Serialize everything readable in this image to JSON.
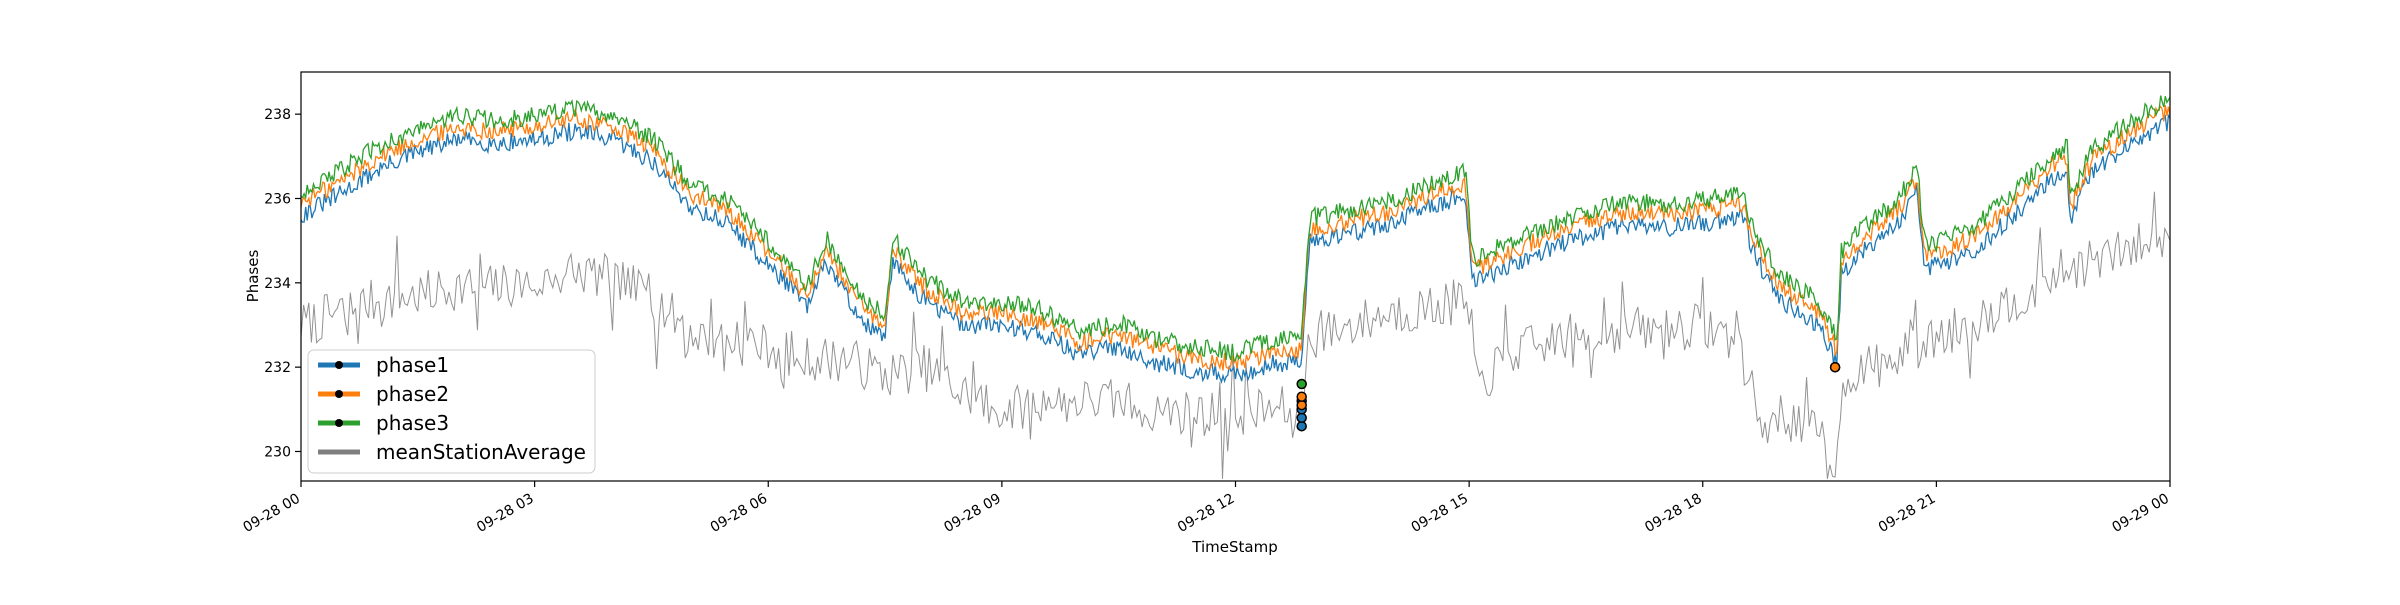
{
  "chart_data": {
    "type": "line",
    "title": "",
    "xlabel": "TimeStamp",
    "ylabel": "Phases",
    "xlim": [
      "2023-09-28 00:00",
      "2023-09-29 00:00"
    ],
    "ylim": [
      229.3,
      239.0
    ],
    "x_ticks": [
      {
        "value": 0,
        "label": "09-28 00"
      },
      {
        "value": 3,
        "label": "09-28 03"
      },
      {
        "value": 6,
        "label": "09-28 06"
      },
      {
        "value": 9,
        "label": "09-28 09"
      },
      {
        "value": 12,
        "label": "09-28 12"
      },
      {
        "value": 15,
        "label": "09-28 15"
      },
      {
        "value": 18,
        "label": "09-28 18"
      },
      {
        "value": 21,
        "label": "09-28 21"
      },
      {
        "value": 24,
        "label": "09-29 00"
      }
    ],
    "y_ticks": [
      230,
      232,
      234,
      236,
      238
    ],
    "grid": false,
    "legend_position": "lower-left",
    "base_line": {
      "x_hours": [
        0.0,
        0.5,
        1.0,
        1.5,
        2.0,
        2.5,
        3.0,
        3.5,
        4.0,
        4.5,
        5.0,
        5.5,
        6.0,
        6.25,
        6.5,
        6.75,
        7.0,
        7.25,
        7.5,
        7.6,
        8.0,
        8.5,
        9.0,
        9.5,
        10.0,
        10.5,
        11.0,
        11.5,
        12.0,
        12.5,
        12.85,
        12.95,
        13.5,
        14.0,
        14.5,
        14.95,
        15.05,
        15.5,
        16.0,
        16.5,
        17.0,
        17.5,
        18.0,
        18.5,
        18.7,
        19.0,
        19.5,
        19.72,
        19.78,
        20.0,
        20.5,
        20.75,
        20.85,
        21.0,
        21.5,
        22.0,
        22.5,
        22.68,
        22.72,
        23.0,
        23.5,
        24.0
      ],
      "y": [
        235.8,
        236.3,
        236.9,
        237.3,
        237.6,
        237.5,
        237.6,
        237.8,
        237.6,
        237.1,
        236.0,
        235.6,
        234.6,
        234.2,
        233.6,
        234.7,
        233.9,
        233.2,
        232.9,
        234.7,
        233.8,
        233.2,
        233.2,
        233.0,
        232.5,
        232.7,
        232.3,
        232.1,
        232.0,
        232.3,
        232.3,
        235.2,
        235.4,
        235.6,
        236.0,
        236.3,
        234.2,
        234.6,
        235.0,
        235.3,
        235.6,
        235.5,
        235.6,
        235.8,
        234.7,
        233.8,
        233.2,
        232.3,
        234.4,
        234.9,
        235.6,
        236.4,
        234.6,
        234.6,
        235.0,
        235.8,
        236.7,
        236.9,
        235.7,
        236.8,
        237.5,
        238.0
      ]
    },
    "series": [
      {
        "name": "phase1",
        "color": "#1f77b4",
        "offset": -0.2
      },
      {
        "name": "phase2",
        "color": "#ff7f0e",
        "offset": 0.1
      },
      {
        "name": "phase3",
        "color": "#2ca02c",
        "offset": 0.35
      }
    ],
    "mean_line": {
      "name": "meanStationAverage",
      "color": "#7f7f7f",
      "x_hours": [
        0.0,
        0.5,
        1.0,
        1.5,
        2.0,
        2.5,
        3.0,
        3.5,
        4.0,
        4.5,
        5.0,
        5.5,
        6.0,
        6.5,
        7.0,
        7.5,
        8.0,
        8.5,
        9.0,
        9.5,
        10.0,
        10.5,
        11.0,
        11.5,
        12.0,
        12.5,
        12.85,
        12.95,
        13.5,
        14.0,
        14.5,
        14.95,
        15.1,
        15.5,
        16.0,
        16.5,
        17.0,
        17.5,
        18.0,
        18.5,
        18.75,
        19.0,
        19.5,
        19.72,
        19.8,
        20.0,
        20.5,
        21.0,
        21.5,
        22.0,
        22.5,
        23.0,
        23.5,
        24.0
      ],
      "y": [
        233.0,
        233.3,
        233.6,
        233.7,
        233.9,
        233.9,
        234.0,
        234.3,
        234.1,
        233.7,
        232.8,
        232.6,
        232.5,
        232.2,
        232.2,
        231.8,
        232.0,
        231.4,
        231.0,
        231.1,
        231.2,
        231.2,
        231.0,
        230.9,
        230.9,
        231.0,
        231.0,
        232.7,
        233.0,
        233.3,
        233.4,
        233.6,
        231.5,
        232.3,
        232.6,
        232.8,
        232.9,
        232.9,
        233.0,
        232.6,
        230.6,
        230.9,
        230.4,
        229.7,
        231.8,
        231.9,
        232.2,
        232.7,
        233.1,
        233.6,
        234.2,
        234.5,
        234.8,
        235.2
      ]
    },
    "markers": [
      {
        "series": "phase1",
        "points": [
          {
            "x": 12.85,
            "y": 230.6
          },
          {
            "x": 12.85,
            "y": 230.8
          },
          {
            "x": 12.85,
            "y": 231.0
          },
          {
            "x": 12.85,
            "y": 231.2
          },
          {
            "x": 19.7,
            "y": 232.0
          }
        ]
      },
      {
        "series": "phase2",
        "points": [
          {
            "x": 12.85,
            "y": 231.1
          },
          {
            "x": 12.85,
            "y": 231.3
          },
          {
            "x": 19.7,
            "y": 232.0
          }
        ]
      },
      {
        "series": "phase3",
        "points": [
          {
            "x": 12.85,
            "y": 231.6
          }
        ]
      }
    ]
  }
}
